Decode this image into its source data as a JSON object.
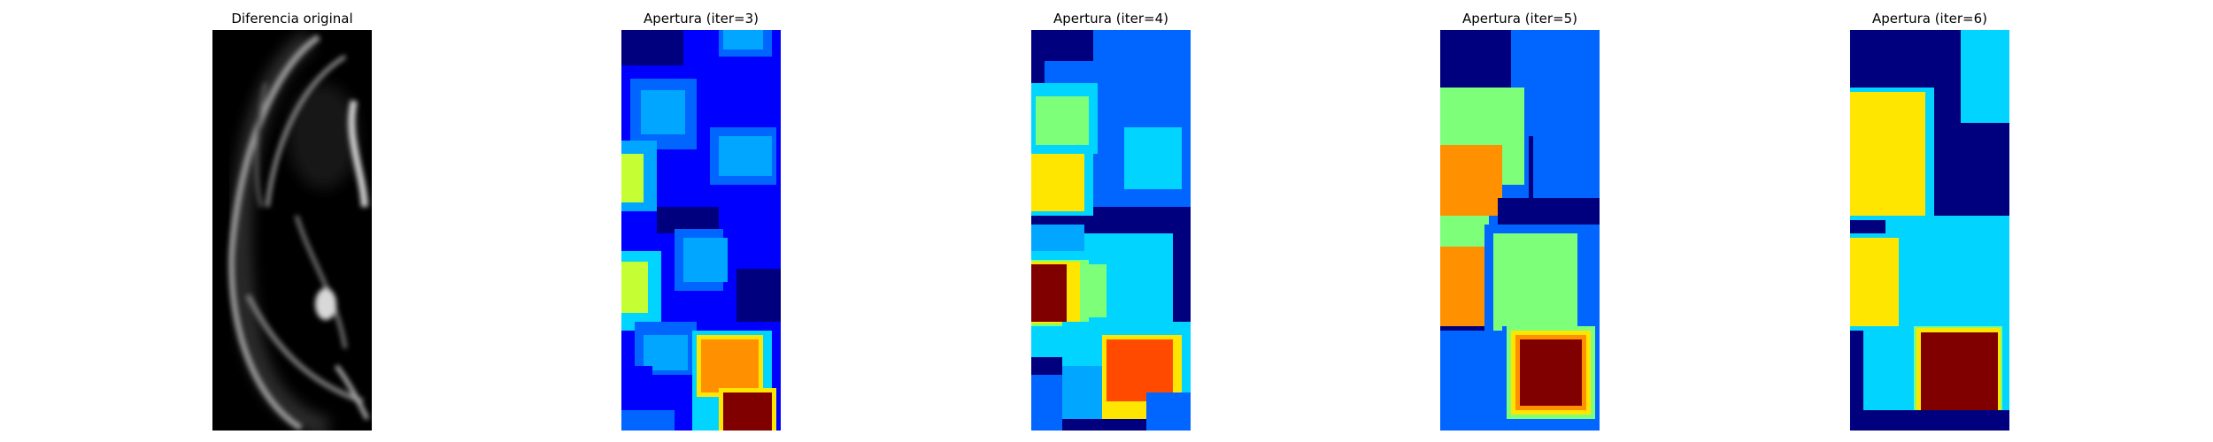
{
  "figure": {
    "panels": [
      {
        "title": "Diferencia original",
        "colormap": "gray",
        "kind": "grayscale-difference-image"
      },
      {
        "title": "Apertura (iter=3)",
        "colormap": "jet",
        "kind": "morphological-opening-result"
      },
      {
        "title": "Apertura (iter=4)",
        "colormap": "jet",
        "kind": "morphological-opening-result"
      },
      {
        "title": "Apertura (iter=5)",
        "colormap": "jet",
        "kind": "morphological-opening-result"
      },
      {
        "title": "Apertura (iter=6)",
        "colormap": "jet",
        "kind": "morphological-opening-result"
      }
    ]
  },
  "colors": {
    "jet_dark_blue": "#00007f",
    "jet_blue": "#0000ff",
    "jet_medium_blue": "#0066ff",
    "jet_light_blue": "#00a6ff",
    "jet_cyan": "#00d4ff",
    "jet_green": "#7dff7a",
    "jet_yellow_green": "#c5ff33",
    "jet_yellow": "#ffe600",
    "jet_orange": "#ff9100",
    "jet_red_orange": "#ff4a00",
    "jet_dark_red": "#800000"
  }
}
